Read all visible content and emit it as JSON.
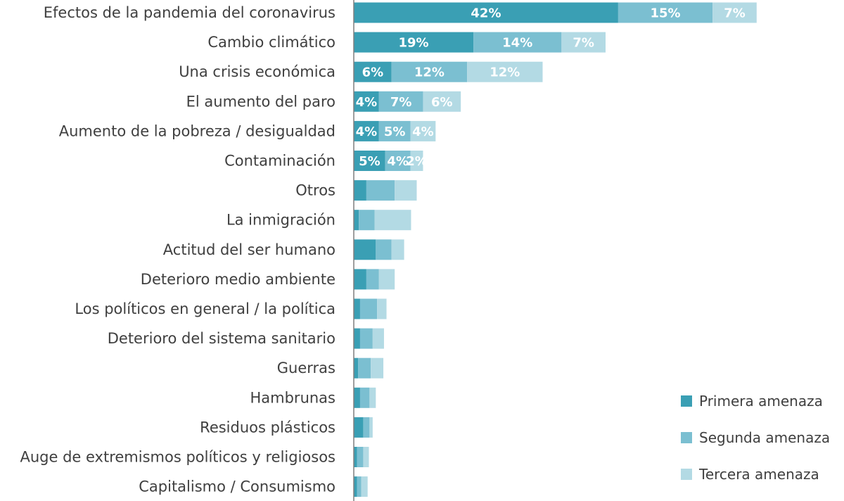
{
  "chart_data": {
    "type": "bar",
    "orientation": "horizontal",
    "stacked": true,
    "title": "",
    "xlabel": "",
    "ylabel": "",
    "xlim": [
      0,
      70
    ],
    "grid": false,
    "legend_position": "bottom-right",
    "value_format": "{v}%",
    "categories": [
      "Efectos de la pandemia del coronavirus",
      "Cambio climático",
      "Una crisis económica",
      "El aumento del paro",
      "Aumento de la pobreza / desigualdad",
      "Contaminación",
      "Otros",
      "La inmigración",
      "Actitud del ser humano",
      "Deterioro medio ambiente",
      "Los políticos en general / la política",
      "Deterioro del sistema sanitario",
      "Guerras",
      "Hambrunas",
      "Residuos plásticos",
      "Auge de extremismos políticos y religiosos",
      "Capitalismo / Consumismo"
    ],
    "series": [
      {
        "name": "Primera amenaza",
        "color": "#3a9fb4",
        "values": [
          42,
          19,
          6,
          4,
          4,
          5,
          2,
          0.8,
          3.5,
          2,
          1,
          1,
          0.7,
          1,
          1.5,
          0.5,
          0.5
        ],
        "labels": [
          "42%",
          "19%",
          "6%",
          "4%",
          "4%",
          "5%",
          null,
          null,
          null,
          null,
          null,
          null,
          null,
          null,
          null,
          null,
          null
        ]
      },
      {
        "name": "Segunda amenaza",
        "color": "#7bbfd1",
        "values": [
          15,
          14,
          12,
          7,
          5,
          4,
          4.5,
          2.5,
          2.5,
          2,
          2.7,
          2,
          2,
          1.5,
          1,
          1,
          0.7
        ],
        "labels": [
          "15%",
          "14%",
          "12%",
          "7%",
          "5%",
          "4%",
          null,
          null,
          null,
          null,
          null,
          null,
          null,
          null,
          null,
          null,
          null
        ]
      },
      {
        "name": "Tercera amenaza",
        "color": "#b3dae4",
        "values": [
          7,
          7,
          12,
          6,
          4,
          2,
          3.5,
          5.8,
          2,
          2.5,
          1.5,
          1.8,
          2,
          1,
          0.5,
          0.9,
          1
        ],
        "labels": [
          "7%",
          "7%",
          "12%",
          "6%",
          "4%",
          "2%",
          null,
          null,
          null,
          null,
          null,
          null,
          null,
          null,
          null,
          null,
          null
        ]
      }
    ]
  }
}
